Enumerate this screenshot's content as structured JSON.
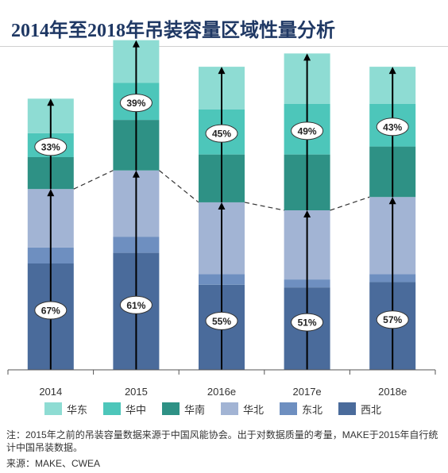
{
  "title": "2014年至2018年吊装容量区域性量分析",
  "note": "注：2015年之前的吊装容量数据来源于中国风能协会。出于对数据质量的考量，MAKE于2015年自行统计中国吊装数据。",
  "source": "来源：MAKE、CWEA",
  "chart_data": {
    "type": "bar",
    "stacked": true,
    "categories": [
      "2014",
      "2015",
      "2016e",
      "2017e",
      "2018e"
    ],
    "series": [
      {
        "name": "西北",
        "color": "#4a6b9b",
        "values": [
          40,
          44,
          32,
          31,
          33
        ]
      },
      {
        "name": "东北",
        "color": "#6e8fc0",
        "values": [
          6,
          6,
          4,
          3,
          3
        ]
      },
      {
        "name": "华北",
        "color": "#a2b4d4",
        "values": [
          22,
          25,
          27,
          26,
          29
        ]
      },
      {
        "name": "华南",
        "color": "#2e9185",
        "values": [
          12,
          19,
          18,
          21,
          19
        ]
      },
      {
        "name": "华中",
        "color": "#4dc6ba",
        "values": [
          9,
          14,
          17,
          19,
          16
        ]
      },
      {
        "name": "华东",
        "color": "#8edcd3",
        "values": [
          13,
          16,
          16,
          19,
          14
        ]
      }
    ],
    "upper_share_labels": [
      "33%",
      "39%",
      "45%",
      "49%",
      "43%"
    ],
    "lower_share_labels": [
      "67%",
      "61%",
      "55%",
      "51%",
      "57%"
    ],
    "legend_order": [
      "华东",
      "华中",
      "华南",
      "华北",
      "东北",
      "西北"
    ],
    "legend_position": "bottom",
    "grid": false
  }
}
